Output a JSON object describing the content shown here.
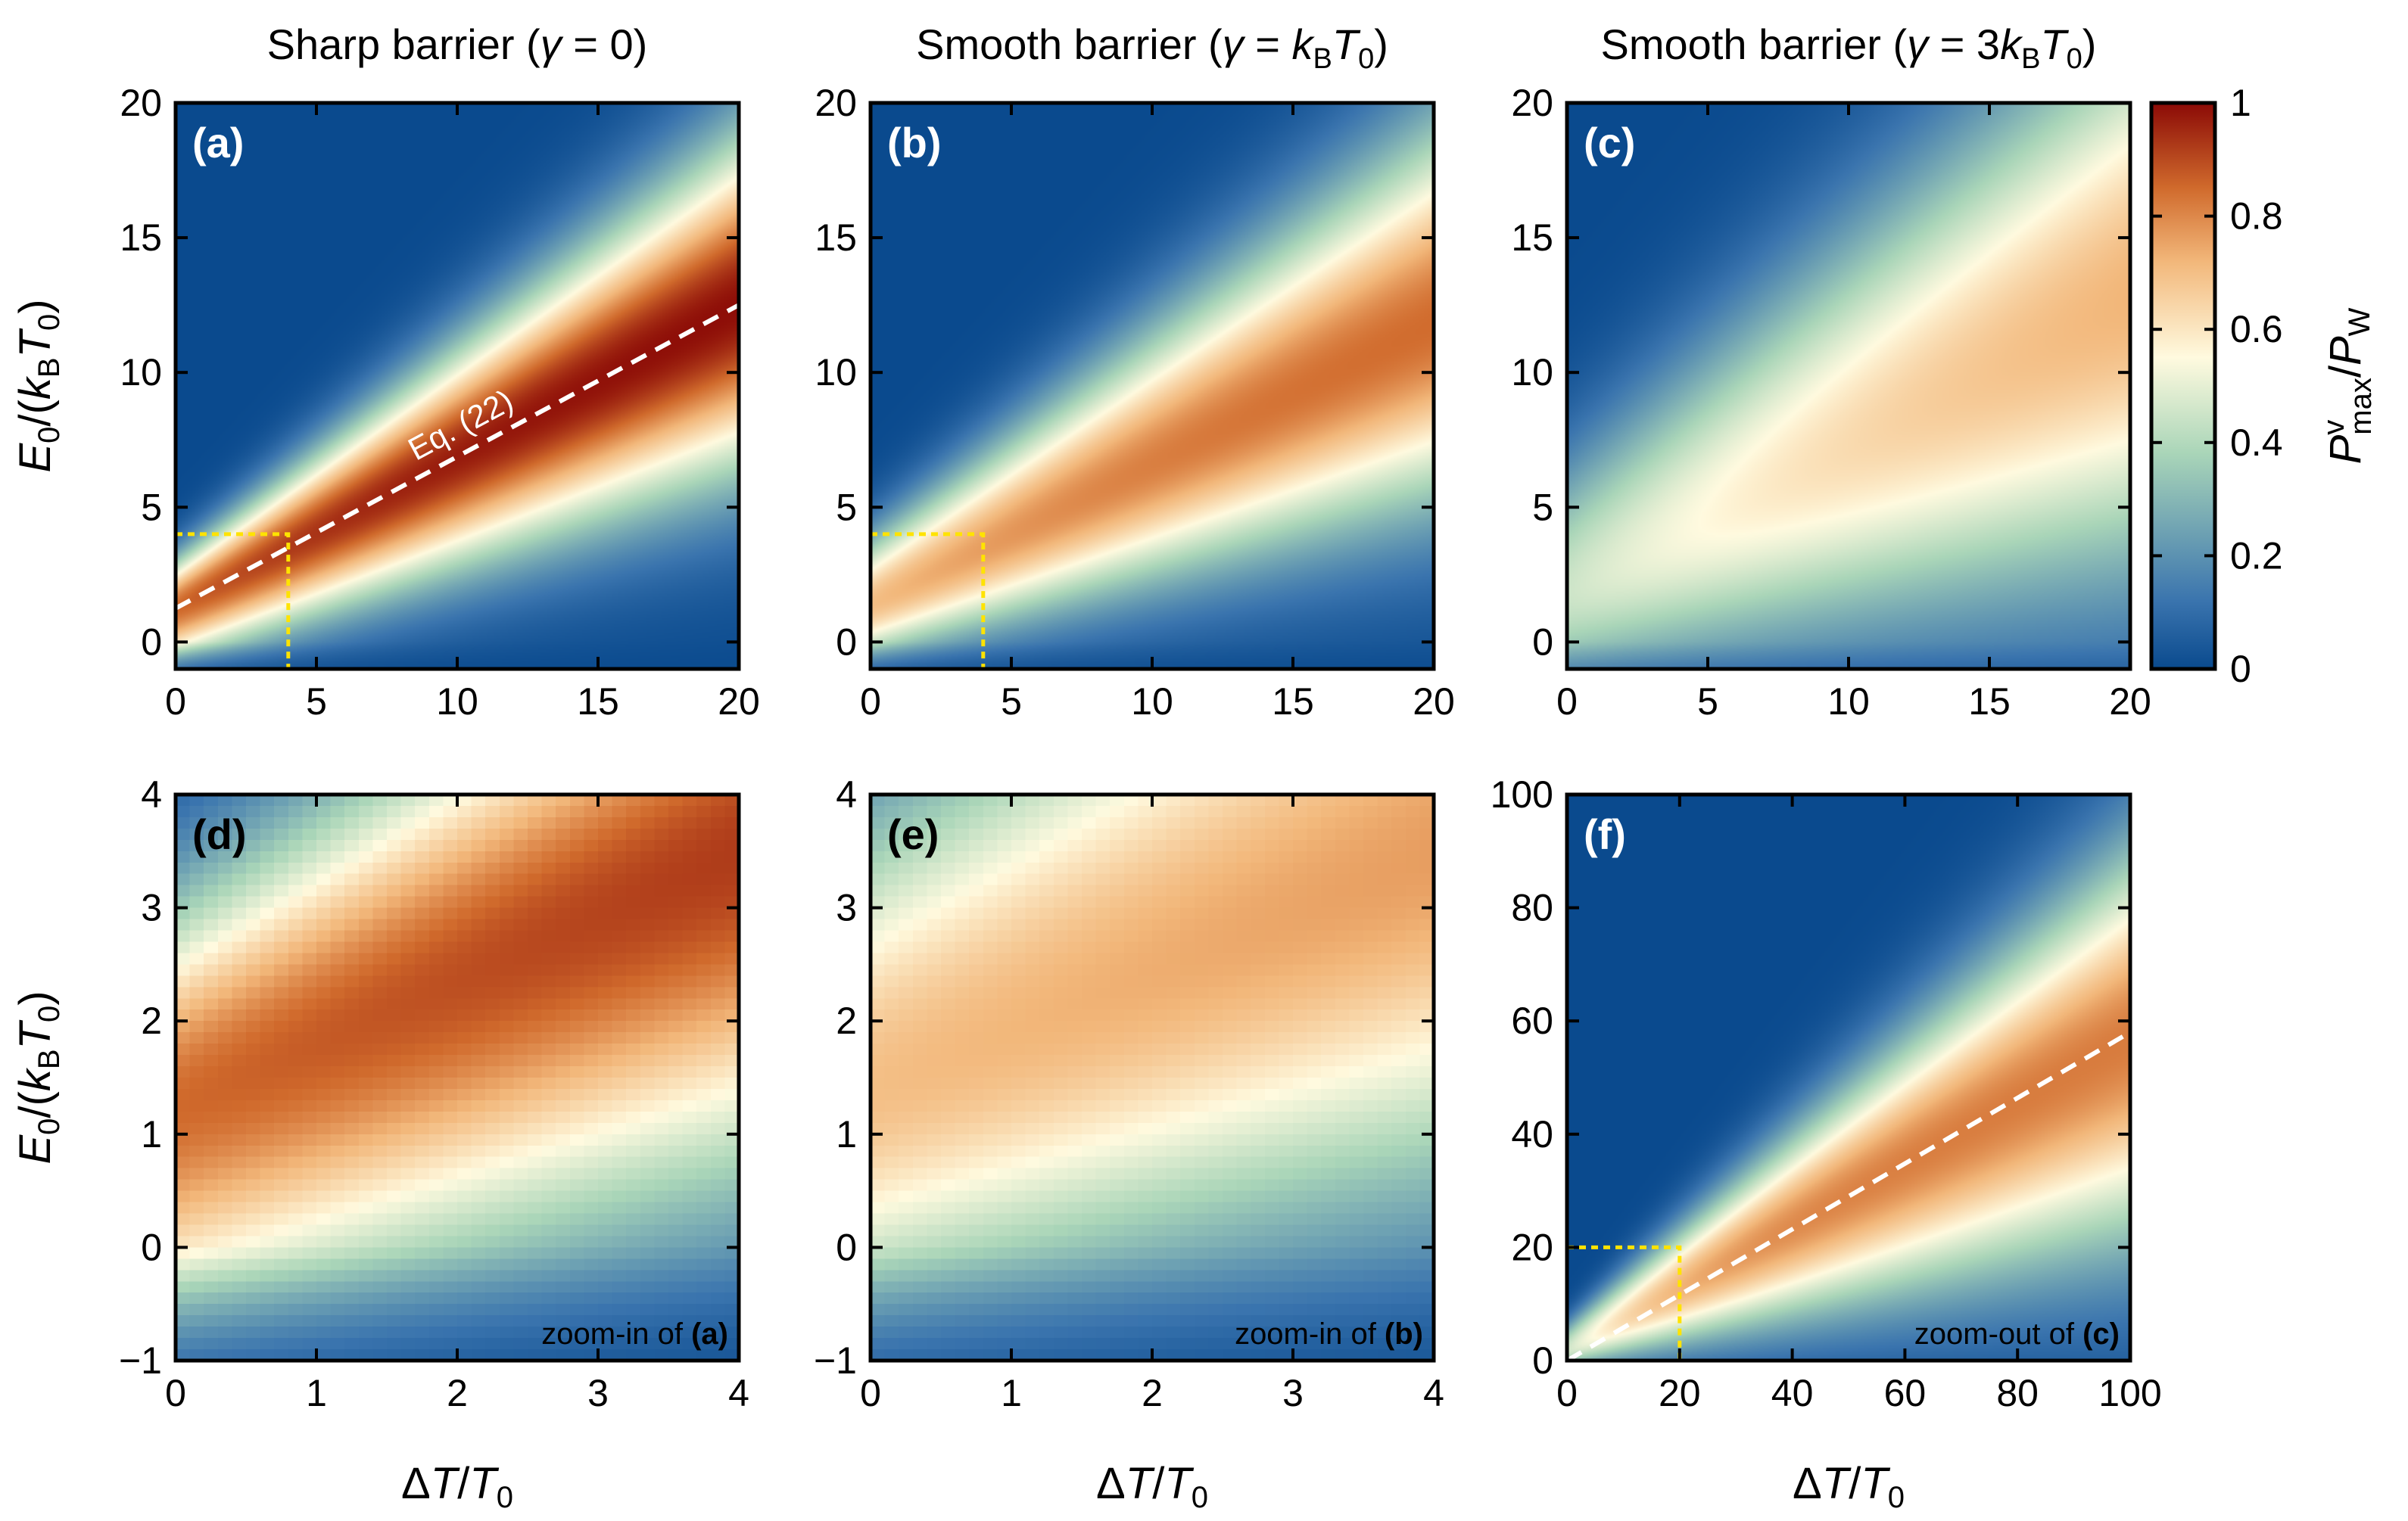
{
  "figure": {
    "titles": [
      {
        "prefix": "Sharp barrier (",
        "gamma": "γ",
        "middle": " = 0",
        "suffix": ")"
      },
      {
        "prefix": "Smooth barrier (",
        "gamma": "γ",
        "middle": " = ",
        "k": "k",
        "ksub": "B",
        "T": "T",
        "Tsub": "0",
        "suffix": ")"
      },
      {
        "prefix": "Smooth barrier (",
        "gamma": "γ",
        "middle": " = 3",
        "k": "k",
        "ksub": "B",
        "T": "T",
        "Tsub": "0",
        "suffix": ")"
      }
    ],
    "ylabel": {
      "E": "E",
      "Esub": "0",
      "mid": "/(",
      "k": "k",
      "ksub": "B",
      "T": "T",
      "Tsub": "0",
      "end": ")"
    },
    "xlabel": {
      "delta": "Δ",
      "T": "T",
      "slash": "/",
      "T0": "T",
      "T0sub": "0"
    },
    "colorbar": {
      "label": {
        "P": "P",
        "sup": "v",
        "sub": "max",
        "slash": "/",
        "PW": "P",
        "PWsub": "W"
      },
      "ticks": [
        "0",
        "0.2",
        "0.4",
        "0.6",
        "0.8",
        "1"
      ],
      "tick_values": [
        0,
        0.2,
        0.4,
        0.6,
        0.8,
        1
      ],
      "colors": [
        "#0a4a8e",
        "#3a74ae",
        "#a9d5b8",
        "#fffadf",
        "#f2b77a",
        "#d06a2c",
        "#8b0a06"
      ],
      "stops": [
        0,
        0.12,
        0.38,
        0.55,
        0.72,
        0.85,
        1
      ]
    }
  },
  "chart_data": [
    {
      "type": "heatmap",
      "panel": "(a)",
      "colormap_var": "Pv_max/P_W",
      "model": "sharp",
      "gamma": 0,
      "x_range": [
        0,
        20
      ],
      "y_range": [
        -1,
        20
      ],
      "xticks": [
        "0",
        "5",
        "10",
        "15",
        "20"
      ],
      "xtick_values": [
        0,
        5,
        10,
        15,
        20
      ],
      "yticks": [
        "0",
        "5",
        "10",
        "15",
        "20"
      ],
      "ytick_values": [
        0,
        5,
        10,
        15,
        20
      ],
      "annotation": "Eq. (22)",
      "dashed_line": {
        "x": [
          0,
          20
        ],
        "y": [
          1.25,
          12.5
        ]
      },
      "inset_box": {
        "x": [
          0,
          4
        ],
        "y": [
          -1,
          4
        ]
      }
    },
    {
      "type": "heatmap",
      "panel": "(b)",
      "colormap_var": "Pv_max/P_W",
      "model": "smooth",
      "gamma": 1,
      "x_range": [
        0,
        20
      ],
      "y_range": [
        -1,
        20
      ],
      "xticks": [
        "0",
        "5",
        "10",
        "15",
        "20"
      ],
      "xtick_values": [
        0,
        5,
        10,
        15,
        20
      ],
      "yticks": [
        "0",
        "5",
        "10",
        "15",
        "20"
      ],
      "ytick_values": [
        0,
        5,
        10,
        15,
        20
      ],
      "inset_box": {
        "x": [
          0,
          4
        ],
        "y": [
          -1,
          4
        ]
      }
    },
    {
      "type": "heatmap",
      "panel": "(c)",
      "colormap_var": "Pv_max/P_W",
      "model": "smooth",
      "gamma": 3,
      "x_range": [
        0,
        20
      ],
      "y_range": [
        -1,
        20
      ],
      "xticks": [
        "0",
        "5",
        "10",
        "15",
        "20"
      ],
      "xtick_values": [
        0,
        5,
        10,
        15,
        20
      ],
      "yticks": [
        "0",
        "5",
        "10",
        "15",
        "20"
      ],
      "ytick_values": [
        0,
        5,
        10,
        15,
        20
      ]
    },
    {
      "type": "heatmap",
      "panel": "(d)",
      "colormap_var": "Pv_max/P_W",
      "model": "sharp",
      "gamma": 0,
      "x_range": [
        0,
        4
      ],
      "y_range": [
        -1,
        4
      ],
      "xticks": [
        "0",
        "1",
        "2",
        "3",
        "4"
      ],
      "xtick_values": [
        0,
        1,
        2,
        3,
        4
      ],
      "yticks": [
        "−1",
        "0",
        "1",
        "2",
        "3",
        "4"
      ],
      "ytick_values": [
        -1,
        0,
        1,
        2,
        3,
        4
      ],
      "note_prefix": "zoom-in of ",
      "note_ref": "(a)",
      "pixelated": true
    },
    {
      "type": "heatmap",
      "panel": "(e)",
      "colormap_var": "Pv_max/P_W",
      "model": "smooth",
      "gamma": 1,
      "x_range": [
        0,
        4
      ],
      "y_range": [
        -1,
        4
      ],
      "xticks": [
        "0",
        "1",
        "2",
        "3",
        "4"
      ],
      "xtick_values": [
        0,
        1,
        2,
        3,
        4
      ],
      "yticks": [
        "−1",
        "0",
        "1",
        "2",
        "3",
        "4"
      ],
      "ytick_values": [
        -1,
        0,
        1,
        2,
        3,
        4
      ],
      "note_prefix": "zoom-in of ",
      "note_ref": "(b)",
      "pixelated": true
    },
    {
      "type": "heatmap",
      "panel": "(f)",
      "colormap_var": "Pv_max/P_W",
      "model": "smooth",
      "gamma": 3,
      "x_range": [
        0,
        100
      ],
      "y_range": [
        0,
        100
      ],
      "xticks": [
        "0",
        "20",
        "40",
        "60",
        "80",
        "100"
      ],
      "xtick_values": [
        0,
        20,
        40,
        60,
        80,
        100
      ],
      "yticks": [
        "0",
        "20",
        "40",
        "60",
        "80",
        "100"
      ],
      "ytick_values": [
        0,
        20,
        40,
        60,
        80,
        100
      ],
      "note_prefix": "zoom-out of ",
      "note_ref": "(c)",
      "dashed_line": {
        "x": [
          0,
          100
        ],
        "y": [
          0,
          58
        ]
      },
      "inset_box": {
        "x": [
          0,
          20
        ],
        "y": [
          0,
          20
        ]
      }
    }
  ]
}
